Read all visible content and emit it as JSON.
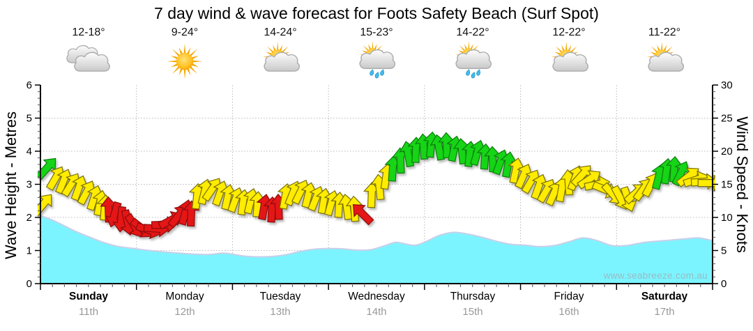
{
  "title": "7 day wind & wave forecast for Foots Safety Beach (Surf Spot)",
  "watermark": "www.seabreeze.com.au",
  "days": [
    {
      "name": "Sunday",
      "date": "11th",
      "temp": "12-18°",
      "icon": "cloudy",
      "bold": true
    },
    {
      "name": "Monday",
      "date": "12th",
      "temp": "9-24°",
      "icon": "sunny",
      "bold": false
    },
    {
      "name": "Tuesday",
      "date": "13th",
      "temp": "14-24°",
      "icon": "partly-cloudy",
      "bold": false
    },
    {
      "name": "Wednesday",
      "date": "14th",
      "temp": "15-23°",
      "icon": "showers",
      "bold": false
    },
    {
      "name": "Thursday",
      "date": "15th",
      "temp": "14-22°",
      "icon": "showers",
      "bold": false
    },
    {
      "name": "Friday",
      "date": "16th",
      "temp": "12-22°",
      "icon": "partly-cloudy",
      "bold": false
    },
    {
      "name": "Saturday",
      "date": "17th",
      "temp": "11-22°",
      "icon": "partly-cloudy",
      "bold": true
    }
  ],
  "chart_data": {
    "type": "area+wind-arrows",
    "left_axis": {
      "label": "Wave Height - Metres",
      "range": [
        0,
        6
      ],
      "ticks": [
        0,
        1,
        2,
        3,
        4,
        5,
        6
      ],
      "minor_step": 0.2
    },
    "right_axis": {
      "label": "Wind Speed - Knots",
      "range": [
        0,
        30
      ],
      "ticks": [
        0,
        5,
        10,
        15,
        20,
        25,
        30
      ],
      "minor_step": 1
    },
    "x_axis": {
      "range_days": [
        0,
        7
      ],
      "minor_per_day": 8,
      "grid": "dotted at day boundaries"
    },
    "wave_height_m": {
      "x_days": [
        0,
        0.1,
        0.2,
        0.35,
        0.5,
        0.65,
        0.8,
        1.0,
        1.2,
        1.4,
        1.6,
        1.75,
        1.9,
        2.0,
        2.1,
        2.25,
        2.4,
        2.55,
        2.7,
        2.85,
        3.0,
        3.15,
        3.3,
        3.45,
        3.6,
        3.7,
        3.8,
        3.9,
        4.0,
        4.15,
        4.3,
        4.45,
        4.6,
        4.75,
        4.9,
        5.05,
        5.2,
        5.35,
        5.5,
        5.65,
        5.8,
        5.95,
        6.1,
        6.3,
        6.5,
        6.7,
        6.85,
        7.0
      ],
      "values": [
        2.05,
        1.95,
        1.82,
        1.6,
        1.42,
        1.25,
        1.13,
        1.05,
        0.98,
        0.93,
        0.89,
        0.88,
        0.92,
        0.89,
        0.84,
        0.81,
        0.82,
        0.87,
        0.97,
        1.04,
        1.06,
        1.05,
        1.01,
        1.03,
        1.16,
        1.25,
        1.2,
        1.16,
        1.25,
        1.45,
        1.55,
        1.5,
        1.4,
        1.28,
        1.19,
        1.16,
        1.12,
        1.15,
        1.26,
        1.38,
        1.3,
        1.15,
        1.15,
        1.25,
        1.3,
        1.35,
        1.38,
        1.3
      ]
    },
    "wind_arrows": {
      "columns": [
        "day",
        "knots",
        "direction_deg_screen",
        "color"
      ],
      "points": [
        [
          0.03,
          12,
          40,
          "y"
        ],
        [
          0.07,
          17.5,
          42,
          "g"
        ],
        [
          0.16,
          16,
          30,
          "y"
        ],
        [
          0.24,
          15.5,
          22,
          "y"
        ],
        [
          0.32,
          15,
          32,
          "y"
        ],
        [
          0.4,
          14.5,
          20,
          "y"
        ],
        [
          0.48,
          13.8,
          28,
          "y"
        ],
        [
          0.56,
          13,
          18,
          "y"
        ],
        [
          0.62,
          12.2,
          12,
          "y"
        ],
        [
          0.67,
          11.5,
          5,
          "y"
        ],
        [
          0.71,
          11.2,
          358,
          "r"
        ],
        [
          0.77,
          10.4,
          196,
          "r"
        ],
        [
          0.84,
          9.7,
          185,
          "r"
        ],
        [
          0.91,
          9.2,
          168,
          "r"
        ],
        [
          0.98,
          8.7,
          148,
          "r"
        ],
        [
          1.06,
          8.3,
          128,
          "r"
        ],
        [
          1.13,
          8.1,
          108,
          "r"
        ],
        [
          1.21,
          8.3,
          94,
          "r"
        ],
        [
          1.29,
          8.9,
          88,
          "r"
        ],
        [
          1.36,
          9.6,
          62,
          "r"
        ],
        [
          1.44,
          10.3,
          38,
          "r"
        ],
        [
          1.51,
          10.8,
          15,
          "r"
        ],
        [
          1.57,
          10.6,
          2,
          "r"
        ],
        [
          1.63,
          13.2,
          6,
          "y"
        ],
        [
          1.71,
          13.9,
          14,
          "y"
        ],
        [
          1.79,
          14.3,
          34,
          "y"
        ],
        [
          1.87,
          13.7,
          20,
          "y"
        ],
        [
          1.95,
          13.1,
          12,
          "y"
        ],
        [
          2.03,
          12.7,
          20,
          "y"
        ],
        [
          2.11,
          12.3,
          8,
          "y"
        ],
        [
          2.19,
          12.5,
          14,
          "y"
        ],
        [
          2.26,
          12.0,
          4,
          "y"
        ],
        [
          2.33,
          11.6,
          10,
          "r"
        ],
        [
          2.41,
          11.2,
          3,
          "r"
        ],
        [
          2.48,
          11.6,
          358,
          "r"
        ],
        [
          2.55,
          13.2,
          10,
          "y"
        ],
        [
          2.63,
          13.7,
          22,
          "y"
        ],
        [
          2.71,
          13.9,
          26,
          "y"
        ],
        [
          2.79,
          13.4,
          14,
          "y"
        ],
        [
          2.87,
          12.9,
          22,
          "y"
        ],
        [
          2.95,
          12.5,
          10,
          "y"
        ],
        [
          3.03,
          12.2,
          16,
          "y"
        ],
        [
          3.11,
          11.9,
          4,
          "y"
        ],
        [
          3.19,
          11.6,
          352,
          "y"
        ],
        [
          3.27,
          11.3,
          356,
          "y"
        ],
        [
          3.35,
          10.6,
          315,
          "r"
        ],
        [
          3.45,
          13.4,
          2,
          "y"
        ],
        [
          3.53,
          14.6,
          354,
          "y"
        ],
        [
          3.6,
          16.2,
          8,
          "y"
        ],
        [
          3.67,
          17.4,
          4,
          "g"
        ],
        [
          3.75,
          18.6,
          358,
          "g"
        ],
        [
          3.83,
          19.6,
          350,
          "g"
        ],
        [
          3.91,
          20.2,
          2,
          "g"
        ],
        [
          3.99,
          20.7,
          356,
          "g"
        ],
        [
          4.07,
          21.0,
          6,
          "g"
        ],
        [
          4.15,
          20.6,
          350,
          "g"
        ],
        [
          4.23,
          20.9,
          358,
          "g"
        ],
        [
          4.31,
          20.4,
          12,
          "g"
        ],
        [
          4.39,
          20.0,
          354,
          "g"
        ],
        [
          4.47,
          19.6,
          6,
          "g"
        ],
        [
          4.55,
          19.8,
          16,
          "g"
        ],
        [
          4.63,
          19.2,
          4,
          "g"
        ],
        [
          4.71,
          18.8,
          358,
          "g"
        ],
        [
          4.79,
          18.4,
          20,
          "g"
        ],
        [
          4.87,
          18.0,
          10,
          "g"
        ],
        [
          4.95,
          17.1,
          12,
          "y"
        ],
        [
          5.03,
          16.3,
          24,
          "y"
        ],
        [
          5.11,
          15.5,
          30,
          "y"
        ],
        [
          5.19,
          14.7,
          20,
          "y"
        ],
        [
          5.27,
          14.1,
          30,
          "y"
        ],
        [
          5.35,
          13.7,
          24,
          "y"
        ],
        [
          5.43,
          14.3,
          10,
          "y"
        ],
        [
          5.5,
          15.3,
          356,
          "y"
        ],
        [
          5.57,
          16.0,
          20,
          "y"
        ],
        [
          5.64,
          16.4,
          42,
          "y"
        ],
        [
          5.72,
          15.8,
          56,
          "y"
        ],
        [
          5.8,
          15.0,
          78,
          "y"
        ],
        [
          5.88,
          14.2,
          112,
          "y"
        ],
        [
          5.96,
          13.5,
          138,
          "y"
        ],
        [
          6.04,
          12.9,
          152,
          "y"
        ],
        [
          6.12,
          12.7,
          162,
          "y"
        ],
        [
          6.2,
          13.7,
          48,
          "y"
        ],
        [
          6.28,
          14.3,
          36,
          "y"
        ],
        [
          6.36,
          15.0,
          28,
          "y"
        ],
        [
          6.44,
          16.2,
          14,
          "g"
        ],
        [
          6.52,
          17.0,
          8,
          "g"
        ],
        [
          6.6,
          17.3,
          4,
          "g"
        ],
        [
          6.67,
          16.7,
          26,
          "g"
        ],
        [
          6.75,
          16.2,
          52,
          "y"
        ],
        [
          6.83,
          15.7,
          72,
          "y"
        ],
        [
          6.91,
          15.4,
          86,
          "y"
        ],
        [
          6.98,
          15.2,
          90,
          "y"
        ]
      ]
    }
  },
  "colors": {
    "background": "#FFFFFF",
    "wave_fill": "#7CF4FF",
    "wave_edge": "#C9CFE8",
    "arrow_yellow": "#FFEC00",
    "arrow_green": "#17D417",
    "arrow_red": "#E51414",
    "grid": "#B8B8B8",
    "axis": "#000000",
    "date_text": "#999999",
    "watermark_text": "#97BCC4"
  }
}
